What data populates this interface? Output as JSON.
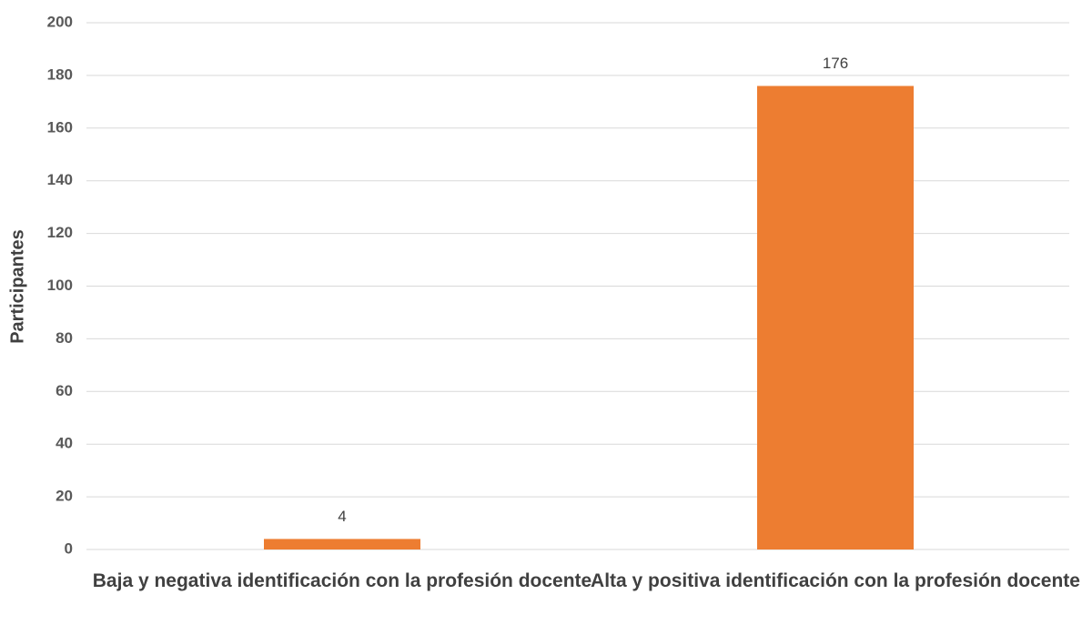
{
  "chart_data": {
    "type": "bar",
    "y_label": "Participantes",
    "categories": [
      "Baja y negativa identificación con la profesión docente",
      "Alta y positiva identificación con la profesión docente"
    ],
    "values": [
      4,
      176
    ],
    "color": "#ed7d31",
    "ylim": [
      0,
      200
    ],
    "yticks": [
      0,
      20,
      40,
      60,
      80,
      100,
      120,
      140,
      160,
      180,
      200
    ],
    "grid": true
  }
}
